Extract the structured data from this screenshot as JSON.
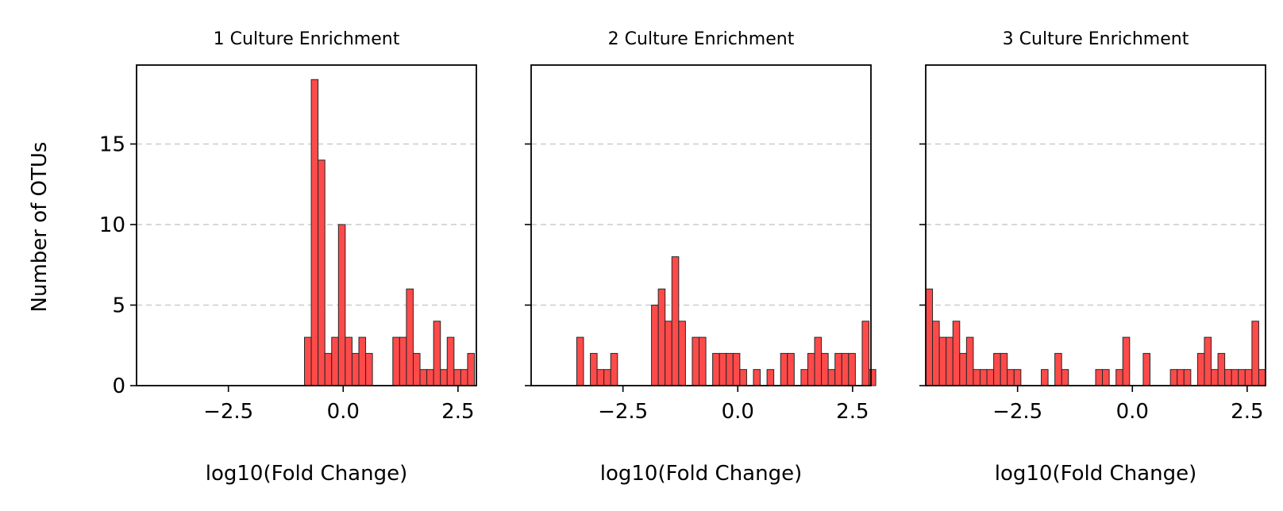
{
  "figure": {
    "ylabel": "Number of OTUs",
    "colors": {
      "bar_fill": "#ff4a4a",
      "bar_edge": "#262626",
      "grid": "#cccccc"
    }
  },
  "chart_data": [
    {
      "type": "bar",
      "title": "1 Culture Enrichment",
      "xlabel": "log10(Fold Change)",
      "ylabel": "Number of OTUs",
      "xlim": [
        -4.5,
        2.9
      ],
      "ylim": [
        0,
        19.9
      ],
      "x_ticks": [
        "−2.5",
        "0.0",
        "2.5"
      ],
      "y_ticks": [
        "0",
        "5",
        "10",
        "15"
      ],
      "grid": "y-dashed",
      "bin_width": 0.148,
      "bins": [
        {
          "x": -0.843,
          "value": 3
        },
        {
          "x": -0.695,
          "value": 19
        },
        {
          "x": -0.547,
          "value": 14
        },
        {
          "x": -0.399,
          "value": 2
        },
        {
          "x": -0.251,
          "value": 3
        },
        {
          "x": -0.103,
          "value": 10
        },
        {
          "x": 0.045,
          "value": 3
        },
        {
          "x": 0.193,
          "value": 2
        },
        {
          "x": 0.341,
          "value": 3
        },
        {
          "x": 0.489,
          "value": 2
        },
        {
          "x": 1.081,
          "value": 3
        },
        {
          "x": 1.229,
          "value": 3
        },
        {
          "x": 1.377,
          "value": 6
        },
        {
          "x": 1.525,
          "value": 2
        },
        {
          "x": 1.673,
          "value": 1
        },
        {
          "x": 1.821,
          "value": 1
        },
        {
          "x": 1.969,
          "value": 4
        },
        {
          "x": 2.117,
          "value": 1
        },
        {
          "x": 2.265,
          "value": 3
        },
        {
          "x": 2.413,
          "value": 1
        },
        {
          "x": 2.561,
          "value": 1
        },
        {
          "x": 2.709,
          "value": 2
        }
      ]
    },
    {
      "type": "bar",
      "title": "2 Culture Enrichment",
      "xlabel": "log10(Fold Change)",
      "xlim": [
        -4.5,
        2.9
      ],
      "ylim": [
        0,
        19.9
      ],
      "x_ticks": [
        "−2.5",
        "0.0",
        "2.5"
      ],
      "grid": "y-dashed",
      "bin_width": 0.148,
      "bins": [
        {
          "x": -3.507,
          "value": 3
        },
        {
          "x": -3.211,
          "value": 2
        },
        {
          "x": -3.063,
          "value": 1
        },
        {
          "x": -2.915,
          "value": 1
        },
        {
          "x": -2.767,
          "value": 2
        },
        {
          "x": -1.879,
          "value": 5
        },
        {
          "x": -1.731,
          "value": 6
        },
        {
          "x": -1.583,
          "value": 4
        },
        {
          "x": -1.435,
          "value": 8
        },
        {
          "x": -1.287,
          "value": 4
        },
        {
          "x": -0.991,
          "value": 3
        },
        {
          "x": -0.843,
          "value": 3
        },
        {
          "x": -0.547,
          "value": 2
        },
        {
          "x": -0.399,
          "value": 2
        },
        {
          "x": -0.251,
          "value": 2
        },
        {
          "x": -0.103,
          "value": 2
        },
        {
          "x": 0.045,
          "value": 1
        },
        {
          "x": 0.341,
          "value": 1
        },
        {
          "x": 0.637,
          "value": 1
        },
        {
          "x": 0.933,
          "value": 2
        },
        {
          "x": 1.081,
          "value": 2
        },
        {
          "x": 1.377,
          "value": 1
        },
        {
          "x": 1.525,
          "value": 2
        },
        {
          "x": 1.673,
          "value": 3
        },
        {
          "x": 1.821,
          "value": 2
        },
        {
          "x": 1.969,
          "value": 1
        },
        {
          "x": 2.117,
          "value": 2
        },
        {
          "x": 2.265,
          "value": 2
        },
        {
          "x": 2.413,
          "value": 2
        },
        {
          "x": 2.709,
          "value": 4
        },
        {
          "x": 2.857,
          "value": 1
        }
      ]
    },
    {
      "type": "bar",
      "title": "3 Culture Enrichment",
      "xlabel": "log10(Fold Change)",
      "xlim": [
        -4.5,
        2.9
      ],
      "ylim": [
        0,
        19.9
      ],
      "x_ticks": [
        "−2.5",
        "0.0",
        "2.5"
      ],
      "grid": "y-dashed",
      "bin_width": 0.148,
      "bins": [
        {
          "x": -4.5,
          "value": 6
        },
        {
          "x": -4.352,
          "value": 4
        },
        {
          "x": -4.204,
          "value": 3
        },
        {
          "x": -4.056,
          "value": 3
        },
        {
          "x": -3.908,
          "value": 4
        },
        {
          "x": -3.76,
          "value": 2
        },
        {
          "x": -3.612,
          "value": 3
        },
        {
          "x": -3.464,
          "value": 1
        },
        {
          "x": -3.316,
          "value": 1
        },
        {
          "x": -3.168,
          "value": 1
        },
        {
          "x": -3.02,
          "value": 2
        },
        {
          "x": -2.872,
          "value": 2
        },
        {
          "x": -2.724,
          "value": 1
        },
        {
          "x": -2.576,
          "value": 1
        },
        {
          "x": -2.28,
          "value": 0
        },
        {
          "x": -1.984,
          "value": 1
        },
        {
          "x": -1.688,
          "value": 2
        },
        {
          "x": -1.54,
          "value": 1
        },
        {
          "x": -0.8,
          "value": 1
        },
        {
          "x": -0.652,
          "value": 1
        },
        {
          "x": -0.356,
          "value": 1
        },
        {
          "x": -0.208,
          "value": 3
        },
        {
          "x": 0.236,
          "value": 2
        },
        {
          "x": 0.828,
          "value": 1
        },
        {
          "x": 0.976,
          "value": 1
        },
        {
          "x": 1.124,
          "value": 1
        },
        {
          "x": 1.42,
          "value": 2
        },
        {
          "x": 1.568,
          "value": 3
        },
        {
          "x": 1.716,
          "value": 1
        },
        {
          "x": 1.864,
          "value": 2
        },
        {
          "x": 2.012,
          "value": 1
        },
        {
          "x": 2.16,
          "value": 1
        },
        {
          "x": 2.308,
          "value": 1
        },
        {
          "x": 2.456,
          "value": 1
        },
        {
          "x": 2.604,
          "value": 4
        },
        {
          "x": 2.752,
          "value": 1
        }
      ]
    }
  ]
}
